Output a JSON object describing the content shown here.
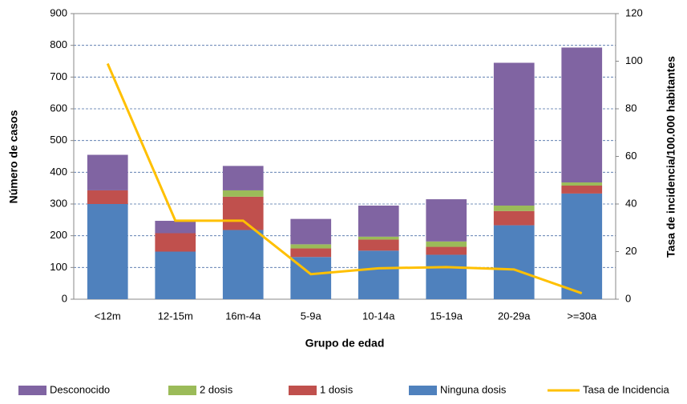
{
  "chart_data": {
    "type": "bar",
    "x_label": "Grupo de edad",
    "y_label": "Número de casos",
    "y2_label": "Tasa de incidencia/100.000 habitantes",
    "categories": [
      "<12m",
      "12-15m",
      "16m-4a",
      "5-9a",
      "10-14a",
      "15-19a",
      "20-29a",
      ">=30a"
    ],
    "stacked": true,
    "grid": true,
    "legend": "bottom",
    "series": [
      {
        "name": "Desconocido",
        "color": "#8064a2",
        "values": [
          112,
          39,
          77,
          80,
          98,
          133,
          450,
          425
        ]
      },
      {
        "name": "2 dosis",
        "color": "#9bbb59",
        "values": [
          0,
          0,
          20,
          13,
          9,
          17,
          17,
          10
        ]
      },
      {
        "name": "1 dosis",
        "color": "#c0504d",
        "values": [
          43,
          58,
          105,
          27,
          35,
          25,
          45,
          25
        ]
      },
      {
        "name": "Ninguna dosis",
        "color": "#4f81bd",
        "values": [
          300,
          150,
          218,
          133,
          153,
          140,
          233,
          333
        ]
      },
      {
        "name": "Tasa de Incidencia",
        "color": "#ffc000",
        "type": "line",
        "axis": "y2",
        "values": [
          99,
          33,
          33,
          10.5,
          13,
          13.5,
          12.5,
          2.5
        ]
      }
    ],
    "ylim": [
      0,
      900
    ],
    "yticks": [
      0,
      100,
      200,
      300,
      400,
      500,
      600,
      700,
      800,
      900
    ],
    "y2lim": [
      0,
      120
    ],
    "y2ticks": [
      0,
      20,
      40,
      60,
      80,
      100,
      120
    ]
  }
}
